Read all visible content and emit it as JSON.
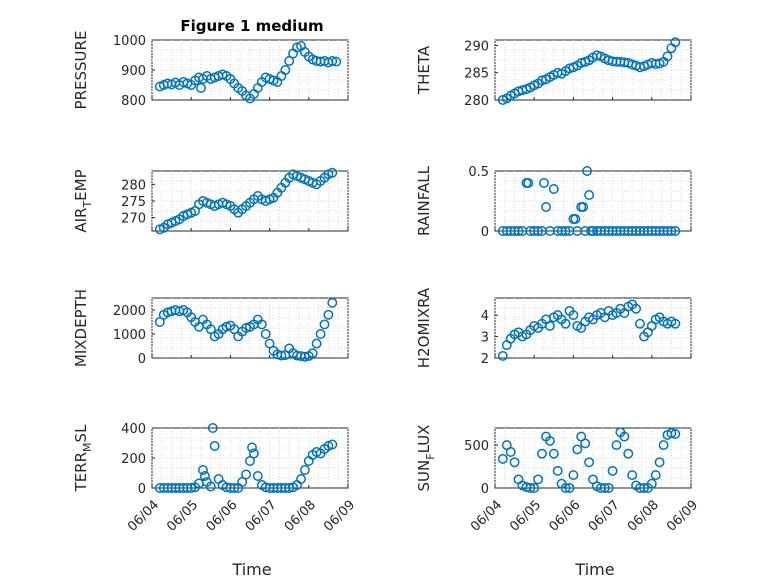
{
  "figure": {
    "title": "Figure 1 medium",
    "marker_color": "#0072BD"
  },
  "chart_data": [
    {
      "type": "scatter",
      "row": 0,
      "col": 0,
      "ylabel": "PRESSURE",
      "ylabel_sub": "",
      "ylabel_tail": "",
      "ylim": [
        800,
        1000
      ],
      "yticks": [
        800,
        900,
        1000
      ],
      "xlim": [
        0,
        5
      ],
      "grid": true,
      "x": [
        0.2,
        0.3,
        0.4,
        0.5,
        0.6,
        0.7,
        0.8,
        0.9,
        1.0,
        1.1,
        1.2,
        1.25,
        1.3,
        1.4,
        1.5,
        1.6,
        1.7,
        1.8,
        1.9,
        2.0,
        2.1,
        2.2,
        2.3,
        2.4,
        2.5,
        2.6,
        2.7,
        2.8,
        2.9,
        3.0,
        3.1,
        3.2,
        3.3,
        3.4,
        3.5,
        3.6,
        3.7,
        3.8,
        3.9,
        4.0,
        4.1,
        4.2,
        4.3,
        4.4,
        4.5,
        4.6,
        4.7
      ],
      "y": [
        845,
        850,
        855,
        852,
        858,
        850,
        860,
        855,
        850,
        865,
        875,
        840,
        870,
        880,
        870,
        875,
        880,
        885,
        880,
        870,
        855,
        840,
        830,
        815,
        805,
        820,
        840,
        860,
        875,
        870,
        865,
        860,
        880,
        900,
        930,
        955,
        975,
        980,
        960,
        945,
        935,
        930,
        928,
        930,
        925,
        930,
        928
      ]
    },
    {
      "type": "scatter",
      "row": 0,
      "col": 1,
      "ylabel": "THETA",
      "ylabel_sub": "",
      "ylabel_tail": "",
      "ylim": [
        280,
        291
      ],
      "yticks": [
        280,
        285,
        290
      ],
      "xlim": [
        0,
        5
      ],
      "grid": true,
      "x": [
        0.2,
        0.3,
        0.4,
        0.5,
        0.6,
        0.7,
        0.8,
        0.9,
        1.0,
        1.1,
        1.2,
        1.3,
        1.4,
        1.5,
        1.6,
        1.7,
        1.8,
        1.9,
        2.0,
        2.1,
        2.2,
        2.3,
        2.4,
        2.5,
        2.6,
        2.7,
        2.8,
        2.9,
        3.0,
        3.1,
        3.2,
        3.3,
        3.4,
        3.5,
        3.6,
        3.7,
        3.8,
        3.9,
        4.0,
        4.1,
        4.2,
        4.3,
        4.4,
        4.5,
        4.6
      ],
      "y": [
        280.0,
        280.3,
        280.8,
        281.2,
        281.6,
        281.8,
        282.0,
        282.3,
        282.7,
        283.0,
        283.6,
        283.8,
        284.2,
        284.6,
        285.0,
        284.8,
        285.3,
        285.8,
        286.0,
        286.3,
        286.8,
        287.0,
        287.3,
        287.8,
        288.2,
        288.0,
        287.6,
        287.3,
        287.1,
        287.0,
        287.0,
        286.9,
        286.8,
        286.5,
        286.3,
        286.0,
        286.2,
        286.5,
        286.8,
        286.6,
        286.7,
        287.0,
        288.0,
        289.5,
        290.6
      ]
    },
    {
      "type": "scatter",
      "row": 1,
      "col": 0,
      "ylabel": "AIR",
      "ylabel_sub": "T",
      "ylabel_tail": "EMP",
      "ylim": [
        266,
        284
      ],
      "yticks": [
        270,
        275,
        280
      ],
      "xlim": [
        0,
        5
      ],
      "grid": true,
      "x": [
        0.2,
        0.3,
        0.4,
        0.5,
        0.6,
        0.7,
        0.8,
        0.9,
        1.0,
        1.1,
        1.2,
        1.3,
        1.4,
        1.5,
        1.6,
        1.7,
        1.8,
        1.9,
        2.0,
        2.1,
        2.2,
        2.3,
        2.4,
        2.5,
        2.6,
        2.7,
        2.8,
        2.9,
        3.0,
        3.1,
        3.2,
        3.3,
        3.4,
        3.5,
        3.6,
        3.7,
        3.8,
        3.9,
        4.0,
        4.1,
        4.2,
        4.3,
        4.4,
        4.5,
        4.6
      ],
      "y": [
        266.5,
        267.0,
        268.0,
        268.5,
        269.0,
        269.5,
        270.5,
        271.0,
        271.5,
        272.0,
        274.0,
        275.0,
        274.5,
        274.0,
        273.5,
        274.0,
        274.5,
        274.0,
        273.5,
        272.5,
        271.5,
        272.5,
        273.5,
        274.5,
        275.5,
        276.5,
        275.5,
        275.0,
        275.5,
        276.0,
        277.5,
        279.0,
        280.5,
        282.0,
        283.0,
        282.5,
        282.0,
        281.5,
        281.0,
        280.5,
        280.0,
        281.0,
        282.0,
        283.0,
        283.5
      ]
    },
    {
      "type": "scatter",
      "row": 1,
      "col": 1,
      "ylabel": "RAINFALL",
      "ylabel_sub": "",
      "ylabel_tail": "",
      "ylim": [
        0,
        0.5
      ],
      "yticks": [
        0,
        0.5
      ],
      "xlim": [
        0,
        5
      ],
      "grid": true,
      "x": [
        0.2,
        0.3,
        0.4,
        0.5,
        0.6,
        0.7,
        0.8,
        0.85,
        0.9,
        1.0,
        1.1,
        1.2,
        1.25,
        1.3,
        1.4,
        1.5,
        1.6,
        1.7,
        1.8,
        1.9,
        2.0,
        2.05,
        2.1,
        2.2,
        2.25,
        2.3,
        2.35,
        2.4,
        2.45,
        2.5,
        2.6,
        2.7,
        2.8,
        2.9,
        3.0,
        3.1,
        3.2,
        3.3,
        3.4,
        3.5,
        3.6,
        3.7,
        3.8,
        3.9,
        4.0,
        4.1,
        4.2,
        4.3,
        4.4,
        4.5,
        4.6
      ],
      "y": [
        0,
        0,
        0,
        0,
        0,
        0,
        0.4,
        0.4,
        0,
        0,
        0,
        0,
        0.4,
        0.2,
        0,
        0.35,
        0,
        0,
        0,
        0,
        0.1,
        0.1,
        0,
        0.2,
        0.2,
        0,
        0.5,
        0.3,
        0,
        0,
        0,
        0,
        0,
        0,
        0,
        0,
        0,
        0,
        0,
        0,
        0,
        0,
        0,
        0,
        0,
        0,
        0,
        0,
        0,
        0,
        0
      ]
    },
    {
      "type": "scatter",
      "row": 2,
      "col": 0,
      "ylabel": "MIXDEPTH",
      "ylabel_sub": "",
      "ylabel_tail": "",
      "ylim": [
        0,
        2500
      ],
      "yticks": [
        0,
        1000,
        2000
      ],
      "xlim": [
        0,
        5
      ],
      "grid": true,
      "x": [
        0.2,
        0.3,
        0.4,
        0.5,
        0.6,
        0.7,
        0.8,
        0.9,
        1.0,
        1.1,
        1.2,
        1.3,
        1.4,
        1.5,
        1.6,
        1.7,
        1.8,
        1.9,
        2.0,
        2.1,
        2.2,
        2.3,
        2.4,
        2.5,
        2.6,
        2.7,
        2.8,
        2.9,
        3.0,
        3.1,
        3.2,
        3.3,
        3.4,
        3.5,
        3.6,
        3.7,
        3.8,
        3.9,
        4.0,
        4.1,
        4.2,
        4.3,
        4.4,
        4.5,
        4.6
      ],
      "y": [
        1500,
        1800,
        1900,
        1950,
        2000,
        1950,
        2000,
        1900,
        1700,
        1500,
        1300,
        1600,
        1400,
        1200,
        900,
        1000,
        1200,
        1300,
        1350,
        1200,
        900,
        1100,
        1250,
        1300,
        1400,
        1600,
        1400,
        1000,
        600,
        300,
        150,
        100,
        120,
        400,
        200,
        100,
        80,
        50,
        80,
        200,
        600,
        1000,
        1400,
        1800,
        2300
      ]
    },
    {
      "type": "scatter",
      "row": 2,
      "col": 1,
      "ylabel": "H2OMIXRA",
      "ylabel_sub": "",
      "ylabel_tail": "",
      "ylim": [
        2,
        4.8
      ],
      "yticks": [
        2,
        3,
        4
      ],
      "xlim": [
        0,
        5
      ],
      "grid": true,
      "x": [
        0.2,
        0.3,
        0.4,
        0.5,
        0.6,
        0.7,
        0.8,
        0.9,
        1.0,
        1.1,
        1.2,
        1.3,
        1.4,
        1.5,
        1.6,
        1.7,
        1.8,
        1.9,
        2.0,
        2.1,
        2.2,
        2.3,
        2.4,
        2.5,
        2.6,
        2.7,
        2.8,
        2.9,
        3.0,
        3.1,
        3.2,
        3.3,
        3.4,
        3.5,
        3.6,
        3.7,
        3.8,
        3.9,
        4.0,
        4.1,
        4.2,
        4.3,
        4.4,
        4.5,
        4.6
      ],
      "y": [
        2.1,
        2.6,
        2.9,
        3.1,
        3.2,
        3.0,
        3.1,
        3.3,
        3.5,
        3.4,
        3.6,
        3.8,
        3.5,
        3.9,
        4.0,
        3.8,
        3.6,
        4.2,
        4.0,
        3.5,
        3.4,
        3.7,
        3.9,
        3.8,
        4.0,
        4.1,
        3.9,
        4.2,
        4.0,
        4.1,
        4.3,
        4.1,
        4.4,
        4.5,
        4.3,
        3.6,
        3.0,
        3.2,
        3.5,
        3.8,
        3.9,
        3.7,
        3.6,
        3.7,
        3.6
      ]
    },
    {
      "type": "scatter",
      "row": 3,
      "col": 0,
      "ylabel": "TERR",
      "ylabel_sub": "M",
      "ylabel_tail": "SL",
      "ylim": [
        0,
        400
      ],
      "yticks": [
        0,
        200,
        400
      ],
      "xlim": [
        0,
        5
      ],
      "grid": true,
      "x": [
        0.2,
        0.3,
        0.4,
        0.5,
        0.6,
        0.7,
        0.8,
        0.9,
        1.0,
        1.1,
        1.2,
        1.3,
        1.35,
        1.4,
        1.5,
        1.55,
        1.6,
        1.7,
        1.8,
        1.9,
        2.0,
        2.1,
        2.2,
        2.3,
        2.4,
        2.5,
        2.55,
        2.6,
        2.7,
        2.8,
        2.9,
        3.0,
        3.1,
        3.2,
        3.3,
        3.4,
        3.5,
        3.6,
        3.7,
        3.8,
        3.9,
        4.0,
        4.1,
        4.2,
        4.3,
        4.4,
        4.5,
        4.6
      ],
      "y": [
        0,
        0,
        0,
        0,
        0,
        0,
        0,
        0,
        0,
        5,
        30,
        120,
        80,
        40,
        10,
        400,
        280,
        60,
        20,
        5,
        0,
        0,
        0,
        40,
        90,
        180,
        270,
        230,
        80,
        20,
        5,
        0,
        0,
        0,
        0,
        0,
        0,
        5,
        20,
        60,
        120,
        180,
        220,
        240,
        230,
        260,
        280,
        290
      ]
    },
    {
      "type": "scatter",
      "row": 3,
      "col": 1,
      "ylabel": "SUN",
      "ylabel_sub": "F",
      "ylabel_tail": "LUX",
      "ylim": [
        0,
        700
      ],
      "yticks": [
        0,
        500
      ],
      "xlim": [
        0,
        5
      ],
      "grid": true,
      "x": [
        0.2,
        0.3,
        0.4,
        0.5,
        0.6,
        0.7,
        0.8,
        0.9,
        1.0,
        1.1,
        1.2,
        1.3,
        1.4,
        1.5,
        1.6,
        1.7,
        1.8,
        1.9,
        2.0,
        2.1,
        2.2,
        2.3,
        2.4,
        2.5,
        2.6,
        2.7,
        2.8,
        2.9,
        3.0,
        3.1,
        3.2,
        3.3,
        3.4,
        3.5,
        3.6,
        3.7,
        3.8,
        3.9,
        4.0,
        4.1,
        4.2,
        4.3,
        4.4,
        4.5,
        4.6
      ],
      "y": [
        340,
        500,
        420,
        300,
        100,
        30,
        10,
        0,
        0,
        100,
        400,
        600,
        550,
        400,
        200,
        50,
        0,
        0,
        150,
        450,
        600,
        520,
        300,
        100,
        20,
        0,
        0,
        0,
        200,
        500,
        650,
        600,
        400,
        150,
        30,
        0,
        0,
        0,
        50,
        150,
        300,
        500,
        620,
        640,
        630
      ]
    }
  ],
  "xaxis": {
    "xticks": [
      0,
      1,
      2,
      3,
      4,
      5
    ],
    "xticklabels": [
      "06/04",
      "06/05",
      "06/06",
      "06/07",
      "06/08",
      "06/09"
    ],
    "xlabel": "Time"
  }
}
